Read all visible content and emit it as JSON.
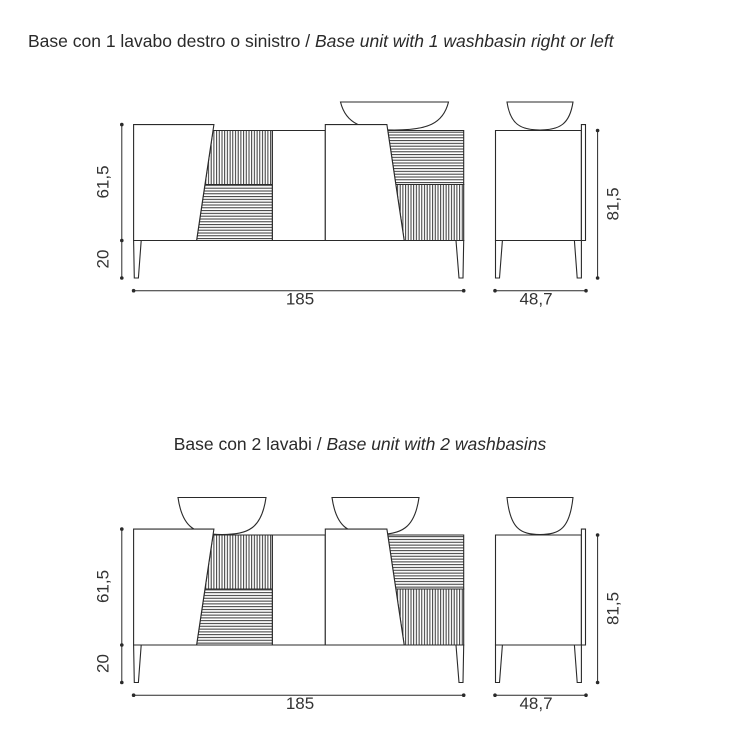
{
  "drawings": [
    {
      "title_it": "Base con 1 lavabo destro o sinistro",
      "separator": " / ",
      "title_en": "Base unit with 1 washbasin right or left",
      "basins": 1,
      "dims": {
        "top_height": "61,5",
        "leg_height": "20",
        "total_height": "81,5",
        "width": "185",
        "depth": "48,7"
      }
    },
    {
      "title_it": "Base con 2 lavabi",
      "separator": " / ",
      "title_en": "Base unit with 2 washbasins",
      "basins": 2,
      "dims": {
        "top_height": "61,5",
        "leg_height": "20",
        "total_height": "81,5",
        "width": "185",
        "depth": "48,7"
      }
    }
  ],
  "colors": {
    "line": "#2a2a2a",
    "text": "#333333"
  }
}
